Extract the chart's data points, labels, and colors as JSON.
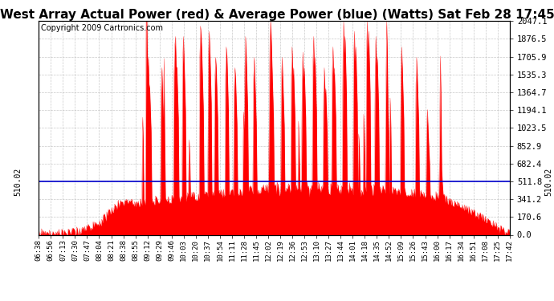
{
  "title": "West Array Actual Power (red) & Average Power (blue) (Watts) Sat Feb 28 17:45",
  "copyright": "Copyright 2009 Cartronics.com",
  "avg_power": 510.02,
  "ymax": 2047.1,
  "yticks": [
    0.0,
    170.6,
    341.2,
    511.8,
    682.4,
    852.9,
    1023.5,
    1194.1,
    1364.7,
    1535.3,
    1705.9,
    1876.5,
    2047.1
  ],
  "ytick_labels": [
    "0.0",
    "170.6",
    "341.2",
    "511.8",
    "682.4",
    "852.9",
    "1023.5",
    "1194.1",
    "1364.7",
    "1535.3",
    "1705.9",
    "1876.5",
    "2047.1"
  ],
  "avg_label": "510.02",
  "x_labels": [
    "06:38",
    "06:56",
    "07:13",
    "07:30",
    "07:47",
    "08:04",
    "08:21",
    "08:38",
    "08:55",
    "09:12",
    "09:29",
    "09:46",
    "10:03",
    "10:20",
    "10:37",
    "10:54",
    "11:11",
    "11:28",
    "11:45",
    "12:02",
    "12:19",
    "12:36",
    "12:53",
    "13:10",
    "13:27",
    "13:44",
    "14:01",
    "14:18",
    "14:35",
    "14:52",
    "15:09",
    "15:26",
    "15:43",
    "16:00",
    "16:17",
    "16:34",
    "16:51",
    "17:08",
    "17:25",
    "17:42"
  ],
  "background_color": "#ffffff",
  "fill_color": "#ff0000",
  "line_color": "#0000cc",
  "grid_color": "#bbbbbb",
  "title_fontsize": 11,
  "copyright_fontsize": 7,
  "n_points": 660
}
